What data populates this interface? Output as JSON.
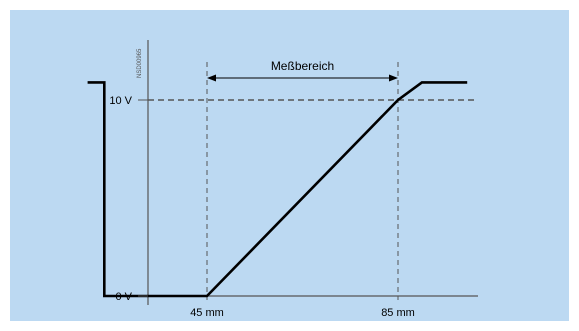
{
  "colors": {
    "background": "#bcd9f2",
    "frame": "#ffffff",
    "line": "#000000",
    "axis": "#555555",
    "dashed": "#555555",
    "text": "#000000"
  },
  "chart_data": {
    "type": "line",
    "title": "",
    "xlabel": "",
    "ylabel": "",
    "code_label": "NSD00965",
    "x_ticks": [
      "45 mm",
      "85 mm"
    ],
    "y_ticks": [
      "0 V",
      "10 V"
    ],
    "annotation": "Meßbereich",
    "xlim": [
      20,
      100
    ],
    "ylim": [
      0,
      11
    ],
    "reference_line_y": 10,
    "series": [
      {
        "x": [
          20,
          23.5,
          23.5,
          33,
          45,
          85,
          90,
          99.5
        ],
        "y": [
          10.9,
          10.9,
          0,
          0,
          0,
          10,
          10.9,
          10.9
        ]
      }
    ],
    "measurement_range": [
      45,
      85
    ],
    "grid": false,
    "legend": "none"
  }
}
